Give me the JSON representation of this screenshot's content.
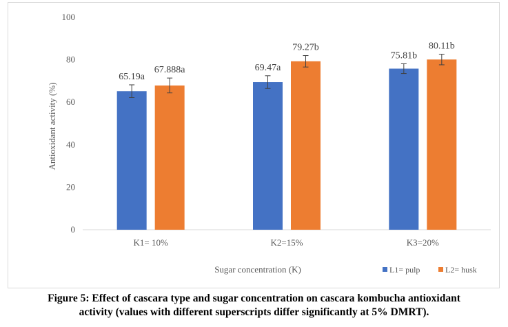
{
  "chart_data": {
    "type": "bar",
    "title": "",
    "xlabel": "Sugar concentration (K)",
    "ylabel": "Antioxidant activity (%)",
    "ylim": [
      0,
      100
    ],
    "yticks": [
      0,
      20,
      40,
      60,
      80,
      100
    ],
    "grid": false,
    "legend_position": "bottom-right",
    "categories": [
      "K1= 10%",
      "K2=15%",
      "K3=20%"
    ],
    "series": [
      {
        "name": "L1= pulp",
        "color": "#4472c4",
        "values": [
          65.19,
          69.47,
          75.81
        ],
        "error": [
          3.0,
          3.0,
          2.3
        ],
        "labels": [
          "65.19a",
          "69.47a",
          "75.81b"
        ]
      },
      {
        "name": "L2= husk",
        "color": "#ed7d31",
        "values": [
          67.888,
          79.27,
          80.11
        ],
        "error": [
          3.5,
          2.7,
          2.5
        ],
        "labels": [
          "67.888a",
          "79.27b",
          "80.11b"
        ]
      }
    ]
  },
  "caption": {
    "line1": "Figure 5: Effect of cascara type and sugar concentration on cascara kombucha antioxidant",
    "line2": "activity (values with different superscripts differ significantly at 5% DMRT)."
  }
}
